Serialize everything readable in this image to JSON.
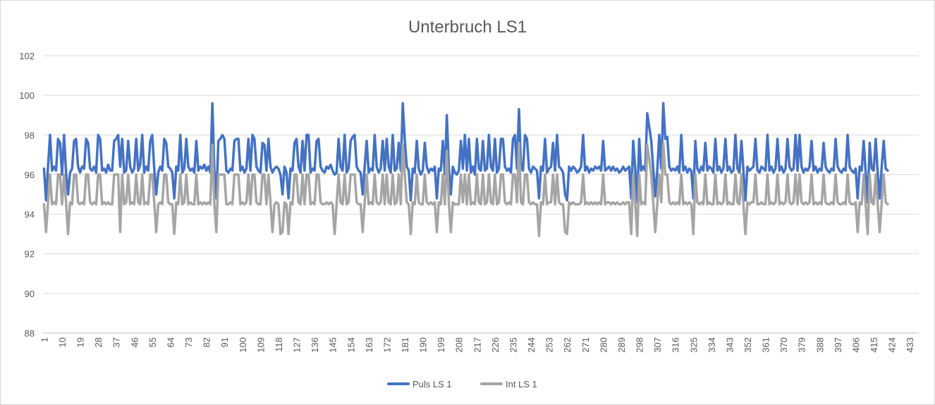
{
  "chart_data": {
    "type": "line",
    "title": "Unterbruch LS1",
    "xlabel": "",
    "ylabel": "",
    "ylim": [
      88,
      102
    ],
    "y_ticks": [
      88,
      90,
      92,
      94,
      96,
      98,
      100,
      102
    ],
    "x_count": 437,
    "x_tick_labels": [
      1,
      10,
      19,
      28,
      37,
      46,
      55,
      64,
      73,
      82,
      91,
      100,
      109,
      118,
      127,
      136,
      145,
      154,
      163,
      172,
      181,
      190,
      199,
      208,
      217,
      226,
      235,
      244,
      253,
      262,
      271,
      280,
      289,
      298,
      307,
      316,
      325,
      334,
      343,
      352,
      361,
      370,
      379,
      388,
      397,
      406,
      415,
      424,
      433
    ],
    "grid": true,
    "legend_position": "bottom",
    "series": [
      {
        "name": "Puls LS 1",
        "color": "#4472c4",
        "values": [
          96.3,
          94.7,
          96.4,
          98.0,
          96.2,
          96.4,
          96.2,
          97.8,
          97.6,
          96.0,
          98.0,
          96.1,
          95.0,
          96.1,
          96.3,
          97.7,
          97.8,
          96.4,
          96.1,
          96.4,
          96.3,
          97.8,
          97.6,
          96.3,
          96.2,
          96.4,
          96.1,
          98.0,
          97.8,
          96.2,
          96.3,
          96.1,
          96.5,
          96.2,
          96.2,
          97.7,
          97.8,
          98.0,
          96.4,
          97.8,
          96.1,
          96.2,
          97.7,
          96.4,
          96.1,
          96.3,
          97.8,
          96.2,
          96.5,
          98.0,
          96.1,
          96.4,
          96.2,
          97.7,
          98.0,
          96.3,
          95.0,
          96.1,
          96.4,
          96.2,
          97.8,
          97.6,
          96.4,
          96.3,
          96.1,
          94.8,
          96.4,
          96.2,
          98.0,
          96.1,
          96.3,
          97.8,
          96.4,
          96.2,
          96.3,
          96.1,
          97.7,
          96.2,
          96.4,
          96.3,
          96.5,
          96.2,
          96.4,
          96.1,
          99.6,
          96.2,
          94.8,
          97.7,
          97.8,
          98.0,
          97.8,
          96.2,
          96.1,
          96.3,
          96.2,
          97.7,
          97.8,
          97.8,
          96.2,
          96.4,
          96.1,
          96.3,
          97.8,
          96.2,
          98.0,
          97.8,
          96.4,
          96.2,
          96.1,
          97.6,
          97.5,
          96.2,
          97.8,
          96.4,
          96.1,
          96.3,
          96.4,
          96.3,
          96.0,
          95.0,
          96.4,
          96.1,
          94.8,
          96.3,
          96.2,
          97.6,
          97.8,
          96.4,
          96.1,
          97.7,
          96.2,
          98.0,
          98.0,
          96.1,
          96.3,
          96.2,
          97.7,
          97.8,
          96.4,
          96.2,
          96.1,
          96.4,
          96.3,
          96.5,
          96.2,
          96.0,
          96.1,
          97.8,
          96.4,
          96.2,
          98.0,
          96.1,
          96.3,
          97.7,
          97.9,
          98.0,
          96.4,
          96.2,
          96.1,
          95.0,
          96.4,
          97.7,
          96.1,
          96.3,
          96.2,
          98.0,
          96.4,
          96.1,
          96.3,
          97.7,
          96.2,
          97.8,
          96.4,
          96.1,
          98.0,
          96.2,
          96.3,
          97.6,
          96.2,
          99.6,
          97.8,
          96.4,
          96.2,
          94.7,
          96.3,
          96.1,
          97.7,
          96.3,
          96.0,
          96.2,
          97.6,
          96.4,
          96.1,
          96.3,
          96.2,
          96.4,
          94.8,
          96.3,
          96.2,
          97.7,
          96.0,
          99.0,
          96.3,
          95.0,
          96.4,
          96.1,
          96.0,
          96.2,
          97.7,
          96.3,
          98.0,
          96.2,
          97.8,
          96.1,
          96.4,
          96.0,
          97.8,
          96.3,
          96.2,
          97.7,
          96.2,
          96.3,
          98.0,
          96.4,
          96.2,
          97.8,
          96.1,
          96.3,
          97.8,
          97.8,
          96.4,
          96.2,
          96.3,
          96.1,
          97.8,
          98.0,
          96.3,
          99.3,
          96.4,
          96.2,
          98.0,
          97.8,
          96.3,
          96.1,
          96.4,
          96.3,
          96.2,
          94.8,
          96.4,
          96.2,
          97.8,
          96.1,
          96.3,
          96.4,
          97.6,
          96.2,
          98.0,
          96.4,
          96.3,
          96.1,
          95.0,
          94.7,
          96.4,
          96.2,
          96.4,
          96.3,
          96.1,
          96.2,
          96.4,
          98.0,
          96.2,
          96.4,
          96.1,
          96.3,
          96.2,
          96.4,
          96.3,
          96.4,
          96.2,
          97.7,
          96.2,
          96.3,
          96.4,
          96.2,
          96.4,
          96.2,
          96.3,
          96.1,
          96.2,
          96.4,
          96.2,
          96.3,
          96.4,
          94.8,
          97.7,
          96.3,
          94.6,
          97.8,
          96.2,
          96.4,
          96.2,
          99.1,
          98.4,
          97.7,
          96.3,
          94.9,
          96.2,
          98.0,
          96.3,
          99.6,
          97.8,
          97.9,
          96.4,
          96.2,
          96.3,
          96.2,
          96.4,
          96.1,
          98.0,
          96.2,
          96.4,
          96.1,
          96.3,
          96.2,
          94.8,
          97.7,
          96.3,
          96.1,
          96.4,
          96.2,
          97.6,
          96.2,
          96.4,
          96.3,
          96.1,
          97.8,
          96.2,
          96.4,
          96.1,
          96.3,
          97.8,
          96.2,
          96.4,
          96.1,
          96.2,
          98.0,
          96.3,
          96.1,
          97.7,
          96.2,
          94.7,
          96.4,
          96.2,
          96.3,
          96.4,
          97.8,
          96.2,
          96.1,
          96.4,
          96.3,
          96.2,
          98.0,
          96.2,
          96.4,
          96.1,
          96.3,
          97.8,
          96.2,
          96.4,
          96.1,
          96.3,
          97.8,
          96.4,
          96.2,
          96.3,
          98.0,
          96.2,
          98.0,
          96.4,
          96.1,
          96.3,
          96.2,
          96.4,
          97.7,
          96.2,
          96.4,
          96.1,
          96.3,
          96.2,
          97.6,
          96.4,
          96.2,
          96.1,
          96.3,
          96.2,
          97.8,
          96.4,
          96.2,
          96.1,
          96.3,
          96.2,
          98.0,
          96.4,
          96.2,
          96.1,
          96.3,
          94.8,
          96.4,
          96.2,
          97.7,
          96.1,
          94.6,
          97.6,
          96.3,
          96.2,
          97.8,
          96.1,
          94.8,
          96.4,
          97.7,
          96.3,
          96.2
        ]
      },
      {
        "name": "Int LS 1",
        "color": "#a5a5a5",
        "values": [
          94.5,
          93.1,
          94.6,
          96.0,
          94.5,
          94.6,
          94.5,
          96.0,
          96.0,
          94.5,
          96.0,
          94.6,
          93.0,
          94.6,
          94.5,
          96.0,
          96.0,
          94.6,
          94.5,
          94.6,
          94.5,
          96.0,
          96.0,
          94.6,
          94.5,
          94.6,
          94.5,
          96.0,
          96.0,
          94.5,
          94.6,
          94.5,
          94.6,
          94.5,
          94.5,
          96.0,
          96.0,
          96.0,
          93.1,
          96.0,
          94.5,
          94.6,
          96.0,
          94.5,
          94.6,
          94.5,
          96.0,
          94.6,
          94.5,
          96.0,
          94.5,
          94.6,
          94.5,
          96.0,
          96.0,
          94.6,
          93.1,
          94.5,
          94.6,
          94.5,
          96.0,
          96.0,
          94.6,
          94.5,
          94.5,
          93.0,
          94.6,
          94.5,
          96.0,
          94.5,
          94.6,
          96.0,
          94.5,
          94.6,
          94.5,
          94.5,
          96.0,
          94.5,
          94.6,
          94.5,
          94.6,
          94.5,
          94.6,
          94.5,
          97.5,
          94.5,
          93.1,
          96.0,
          96.0,
          96.0,
          96.0,
          94.5,
          94.5,
          94.6,
          94.5,
          96.0,
          96.0,
          96.0,
          94.5,
          94.6,
          94.5,
          94.6,
          96.0,
          94.5,
          96.0,
          96.0,
          94.6,
          94.5,
          94.5,
          96.0,
          96.0,
          94.5,
          96.0,
          94.6,
          93.1,
          94.5,
          94.6,
          94.5,
          93.0,
          93.1,
          94.6,
          94.5,
          93.0,
          94.6,
          94.5,
          96.0,
          96.0,
          94.6,
          94.5,
          96.0,
          94.5,
          96.0,
          96.0,
          94.5,
          94.6,
          94.5,
          96.0,
          96.0,
          94.6,
          94.5,
          94.5,
          94.6,
          94.5,
          94.6,
          94.5,
          93.0,
          94.5,
          96.0,
          94.6,
          94.5,
          96.0,
          94.5,
          94.6,
          96.0,
          96.0,
          96.0,
          94.6,
          94.5,
          94.5,
          93.1,
          94.6,
          96.0,
          94.5,
          94.6,
          94.5,
          96.0,
          94.6,
          94.5,
          94.6,
          96.0,
          94.5,
          96.0,
          94.6,
          94.5,
          96.0,
          94.5,
          94.6,
          96.0,
          94.5,
          97.5,
          96.0,
          94.6,
          94.5,
          93.0,
          94.6,
          94.5,
          96.0,
          94.6,
          94.5,
          94.5,
          96.0,
          94.6,
          94.5,
          94.6,
          94.5,
          94.6,
          93.1,
          94.6,
          94.5,
          96.0,
          94.5,
          97.2,
          94.6,
          93.1,
          94.6,
          94.5,
          94.5,
          94.5,
          96.0,
          94.6,
          96.0,
          94.5,
          96.0,
          94.5,
          94.6,
          94.5,
          96.0,
          94.6,
          94.5,
          96.0,
          94.5,
          94.6,
          96.0,
          94.6,
          94.5,
          96.0,
          94.5,
          94.6,
          96.0,
          96.0,
          94.6,
          94.5,
          94.6,
          94.5,
          96.0,
          96.0,
          94.6,
          97.6,
          94.6,
          94.5,
          96.0,
          96.0,
          94.6,
          94.5,
          94.6,
          94.5,
          94.5,
          92.9,
          94.6,
          94.5,
          96.0,
          94.5,
          94.6,
          94.6,
          96.0,
          94.5,
          96.0,
          94.6,
          94.5,
          94.5,
          93.1,
          93.0,
          94.6,
          94.5,
          94.6,
          94.5,
          94.5,
          94.5,
          94.6,
          96.0,
          94.5,
          94.6,
          94.5,
          94.6,
          94.5,
          94.6,
          94.5,
          94.6,
          94.5,
          96.0,
          94.5,
          94.6,
          94.6,
          94.5,
          94.6,
          94.5,
          94.6,
          94.5,
          94.5,
          94.6,
          94.5,
          94.6,
          94.6,
          93.0,
          96.0,
          94.6,
          92.9,
          96.0,
          94.5,
          94.6,
          94.5,
          97.5,
          96.8,
          96.0,
          94.6,
          93.1,
          94.5,
          96.0,
          94.6,
          97.6,
          96.0,
          96.0,
          94.6,
          94.5,
          94.6,
          94.5,
          94.6,
          94.5,
          96.0,
          94.5,
          94.6,
          94.5,
          94.6,
          94.5,
          93.0,
          96.0,
          94.6,
          94.5,
          94.6,
          94.5,
          96.0,
          94.5,
          94.6,
          94.5,
          94.5,
          96.0,
          94.5,
          94.6,
          94.5,
          94.6,
          96.0,
          94.5,
          94.6,
          94.5,
          94.5,
          96.0,
          94.6,
          94.5,
          96.0,
          94.5,
          93.0,
          94.6,
          94.5,
          94.6,
          94.6,
          96.0,
          94.5,
          94.5,
          94.6,
          94.5,
          94.5,
          96.0,
          94.5,
          94.6,
          94.5,
          94.6,
          96.0,
          94.5,
          94.6,
          94.5,
          94.6,
          96.0,
          94.6,
          94.5,
          94.6,
          96.0,
          94.5,
          96.0,
          94.6,
          94.5,
          94.6,
          94.5,
          94.6,
          96.0,
          94.5,
          94.6,
          94.5,
          94.6,
          94.5,
          96.0,
          94.6,
          94.5,
          94.5,
          94.6,
          94.5,
          96.0,
          94.6,
          94.5,
          94.5,
          94.6,
          94.5,
          96.0,
          94.6,
          94.5,
          94.5,
          94.6,
          93.1,
          94.6,
          94.5,
          96.0,
          94.5,
          93.0,
          96.0,
          94.6,
          94.5,
          96.0,
          94.5,
          93.1,
          94.6,
          96.0,
          94.6,
          94.5
        ]
      }
    ]
  }
}
